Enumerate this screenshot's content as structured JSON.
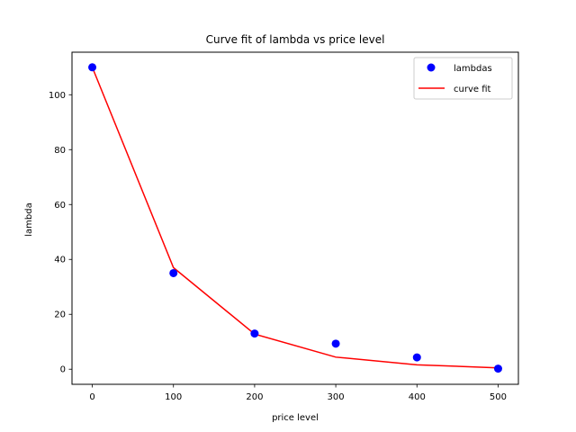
{
  "chart_data": {
    "type": "scatter",
    "title": "Curve fit of lambda vs price level",
    "xlabel": "price level",
    "ylabel": "lambda",
    "xlim": [
      -25,
      525
    ],
    "ylim": [
      -5.5,
      115.5
    ],
    "xticks": [
      0,
      100,
      200,
      300,
      400,
      500
    ],
    "yticks": [
      0,
      20,
      40,
      60,
      80,
      100
    ],
    "grid": false,
    "legend_position": "top-right",
    "series": [
      {
        "name": "lambdas",
        "kind": "scatter",
        "color": "#0000ff",
        "x": [
          0,
          100,
          200,
          300,
          400,
          500
        ],
        "y": [
          110,
          35,
          13,
          9.3,
          4.3,
          0.2
        ]
      },
      {
        "name": "curve fit",
        "kind": "line",
        "color": "#ff0000",
        "x": [
          0,
          100,
          200,
          300,
          400,
          500
        ],
        "y": [
          110,
          37,
          12.8,
          4.4,
          1.6,
          0.5
        ]
      }
    ]
  }
}
